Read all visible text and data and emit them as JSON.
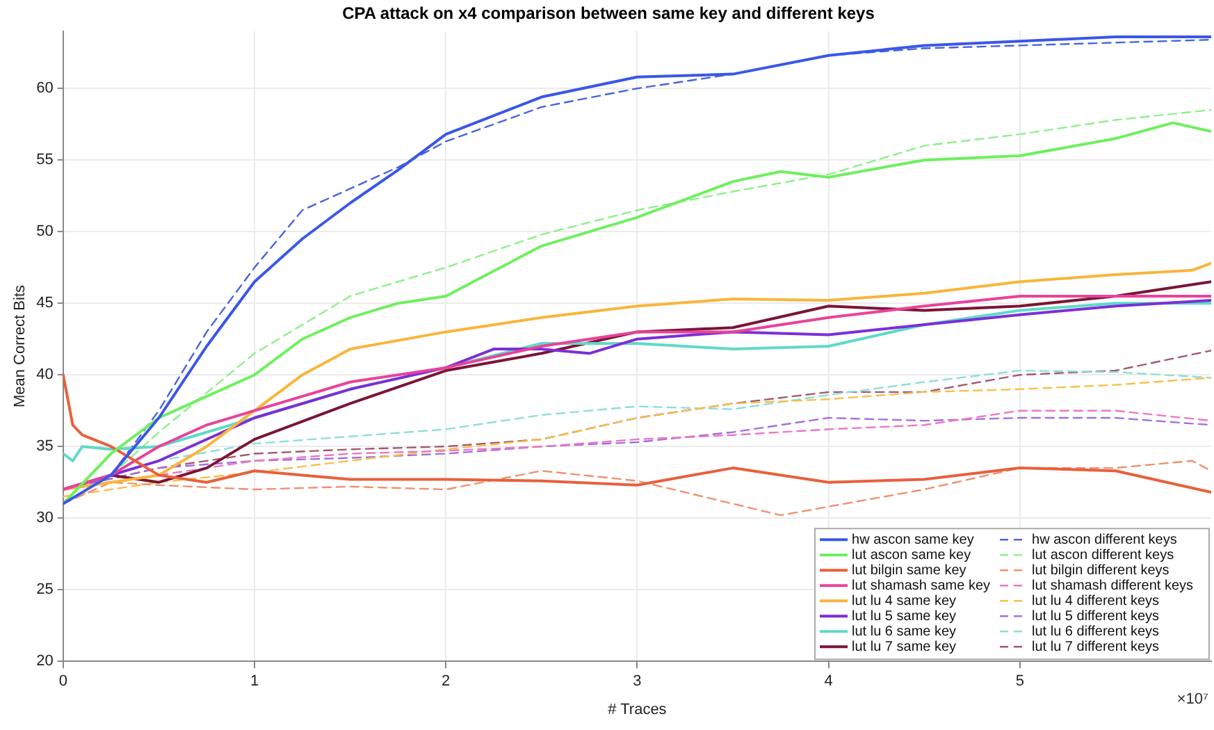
{
  "chart_data": {
    "type": "line",
    "title": "CPA attack on x4 comparison between same key and different keys",
    "xlabel": "# Traces",
    "ylabel": "Mean Correct Bits",
    "annotations": [
      "×10⁷"
    ],
    "xlim": [
      0,
      6
    ],
    "xticks": [
      0,
      1,
      2,
      3,
      4,
      5
    ],
    "ylim": [
      20,
      64
    ],
    "yticks": [
      20,
      25,
      30,
      35,
      40,
      45,
      50,
      55,
      60
    ],
    "grid": true,
    "legend": "bottom right",
    "marker": "none",
    "series": [
      {
        "name": "hw ascon same key",
        "color": "#3a57e8",
        "line_style": "solid",
        "x": [
          0,
          0.25,
          0.5,
          0.75,
          1,
          1.25,
          1.5,
          1.75,
          2,
          2.5,
          3,
          3.5,
          4,
          4.5,
          5,
          5.5,
          6
        ],
        "values": [
          31,
          33,
          37,
          42,
          46.5,
          49.5,
          52,
          54.3,
          56.8,
          59.4,
          60.8,
          61,
          62.3,
          63,
          63.3,
          63.6,
          63.6
        ]
      },
      {
        "name": "lut ascon same key",
        "color": "#6ef05e",
        "line_style": "solid",
        "x": [
          0,
          0.25,
          0.5,
          0.75,
          1,
          1.25,
          1.5,
          1.75,
          2,
          2.5,
          3,
          3.5,
          3.75,
          4,
          4.5,
          5,
          5.5,
          5.8,
          6
        ],
        "values": [
          31,
          34.5,
          37,
          38.5,
          40,
          42.5,
          44,
          45,
          45.5,
          49,
          51,
          53.5,
          54.2,
          53.8,
          55,
          55.3,
          56.5,
          57.6,
          57
        ]
      },
      {
        "name": "lut bilgin same key",
        "color": "#e8603c",
        "line_style": "solid",
        "x": [
          0,
          0.05,
          0.1,
          0.25,
          0.5,
          0.75,
          1,
          1.25,
          1.5,
          2,
          2.5,
          3,
          3.5,
          4,
          4.5,
          5,
          5.5,
          6
        ],
        "values": [
          40,
          36.5,
          35.8,
          35,
          33,
          32.5,
          33.3,
          33,
          32.7,
          32.7,
          32.6,
          32.3,
          33.5,
          32.5,
          32.7,
          33.5,
          33.3,
          31.8
        ]
      },
      {
        "name": "lut shamash same key",
        "color": "#e8429a",
        "line_style": "solid",
        "x": [
          0,
          0.25,
          0.5,
          0.75,
          1,
          1.5,
          2,
          2.5,
          3,
          3.5,
          4,
          4.5,
          5,
          5.5,
          6
        ],
        "values": [
          32,
          33,
          35,
          36.5,
          37.5,
          39.5,
          40.5,
          42,
          43,
          43,
          44,
          44.8,
          45.5,
          45.5,
          45.5
        ]
      },
      {
        "name": "lut lu 4 same key",
        "color": "#f9b53a",
        "line_style": "solid",
        "x": [
          0,
          0.25,
          0.5,
          0.75,
          1,
          1.25,
          1.5,
          2,
          2.5,
          3,
          3.5,
          4,
          4.5,
          5,
          5.5,
          5.9,
          6
        ],
        "values": [
          32,
          32.5,
          33,
          35,
          37.5,
          40,
          41.8,
          43,
          44,
          44.8,
          45.3,
          45.2,
          45.7,
          46.5,
          47,
          47.3,
          47.8
        ]
      },
      {
        "name": "lut lu 5 same key",
        "color": "#7b2fd6",
        "line_style": "solid",
        "x": [
          0,
          0.5,
          1,
          1.5,
          2,
          2.25,
          2.5,
          2.75,
          3,
          3.5,
          4,
          4.5,
          5,
          5.5,
          6
        ],
        "values": [
          32,
          34,
          37,
          39,
          40.5,
          41.8,
          41.8,
          41.5,
          42.5,
          43,
          42.8,
          43.5,
          44.2,
          44.8,
          45.2
        ]
      },
      {
        "name": "lut lu 6 same key",
        "color": "#5fd9c8",
        "line_style": "solid",
        "x": [
          0,
          0.05,
          0.1,
          0.25,
          0.5,
          1,
          1.5,
          2,
          2.5,
          3,
          3.5,
          4,
          4.5,
          5,
          5.5,
          6
        ],
        "values": [
          34.5,
          34,
          35,
          34.8,
          35,
          37,
          39,
          40.5,
          42.2,
          42.2,
          41.8,
          42,
          43.5,
          44.5,
          45,
          45
        ]
      },
      {
        "name": "lut lu 7 same key",
        "color": "#7a1535",
        "line_style": "solid",
        "x": [
          0,
          0.25,
          0.5,
          0.75,
          1,
          1.5,
          2,
          2.5,
          3,
          3.5,
          4,
          4.5,
          5,
          5.5,
          6
        ],
        "values": [
          32,
          33,
          32.5,
          33.5,
          35.5,
          38,
          40.3,
          41.5,
          43,
          43.3,
          44.8,
          44.5,
          44.8,
          45.5,
          46.5
        ]
      },
      {
        "name": "hw ascon different keys",
        "color": "#4a62e0",
        "line_style": "dashed",
        "x": [
          0,
          0.25,
          0.5,
          0.75,
          1,
          1.25,
          1.5,
          1.75,
          2,
          2.5,
          3,
          3.5,
          4,
          4.5,
          5,
          5.5,
          6
        ],
        "values": [
          31,
          33,
          37.5,
          43,
          47.5,
          51.5,
          53,
          54.5,
          56.3,
          58.7,
          60,
          61,
          62.3,
          62.8,
          63,
          63.2,
          63.4
        ]
      },
      {
        "name": "lut ascon different keys",
        "color": "#8ef08a",
        "line_style": "dashed",
        "x": [
          0,
          0.25,
          0.5,
          1,
          1.5,
          2,
          2.5,
          3,
          3.5,
          4,
          4.5,
          5,
          5.5,
          6
        ],
        "values": [
          31,
          33,
          36,
          41.5,
          45.5,
          47.5,
          49.8,
          51.5,
          52.8,
          54,
          56,
          56.8,
          57.8,
          58.5
        ]
      },
      {
        "name": "lut bilgin different keys",
        "color": "#f0906e",
        "line_style": "dashed",
        "x": [
          0,
          0.25,
          0.5,
          1,
          1.5,
          2,
          2.5,
          3,
          3.5,
          3.75,
          4,
          4.5,
          5,
          5.5,
          5.9,
          6
        ],
        "values": [
          31,
          32.5,
          32.3,
          32,
          32.2,
          32,
          33.3,
          32.6,
          31,
          30.2,
          30.8,
          32,
          33.5,
          33.5,
          34,
          33.3
        ]
      },
      {
        "name": "lut shamash different keys",
        "color": "#ee77c0",
        "line_style": "dashed",
        "x": [
          0,
          0.5,
          1,
          1.5,
          2,
          2.5,
          3,
          3.5,
          4,
          4.5,
          5,
          5.5,
          6
        ],
        "values": [
          32,
          33,
          34,
          34.5,
          34.7,
          35,
          35.5,
          35.8,
          36.2,
          36.5,
          37.5,
          37.5,
          36.8
        ]
      },
      {
        "name": "lut lu 4 different keys",
        "color": "#f5c04a",
        "line_style": "dashed",
        "x": [
          0,
          0.25,
          0.5,
          1,
          1.5,
          2,
          2.5,
          3,
          3.5,
          4,
          4.5,
          5,
          5.5,
          6
        ],
        "values": [
          31.5,
          32,
          32.5,
          33.2,
          34,
          34.8,
          35.5,
          37,
          38,
          38.3,
          38.8,
          39,
          39.3,
          39.8
        ]
      },
      {
        "name": "lut lu 5 different keys",
        "color": "#a070e0",
        "line_style": "dashed",
        "x": [
          0,
          0.5,
          1,
          1.5,
          2,
          2.5,
          3,
          3.5,
          4,
          4.5,
          5,
          5.5,
          6
        ],
        "values": [
          32,
          33.5,
          34,
          34.2,
          34.5,
          35,
          35.3,
          36,
          37,
          36.8,
          37,
          37,
          36.5
        ]
      },
      {
        "name": "lut lu 6 different keys",
        "color": "#8ce0d6",
        "line_style": "dashed",
        "x": [
          0,
          0.5,
          1,
          1.5,
          2,
          2.5,
          3,
          3.5,
          4,
          4.5,
          5,
          5.5,
          6
        ],
        "values": [
          32,
          34,
          35.2,
          35.7,
          36.2,
          37.2,
          37.8,
          37.6,
          38.6,
          39.5,
          40.3,
          40.2,
          39.8
        ]
      },
      {
        "name": "lut lu 7 different keys",
        "color": "#a05a70",
        "line_style": "dashed",
        "x": [
          0,
          0.5,
          1,
          1.5,
          2,
          2.5,
          3,
          3.5,
          4,
          4.5,
          5,
          5.5,
          6
        ],
        "values": [
          32,
          33.5,
          34.5,
          34.8,
          35,
          35.5,
          37,
          38,
          38.8,
          38.8,
          40,
          40.3,
          41.7
        ]
      }
    ]
  }
}
